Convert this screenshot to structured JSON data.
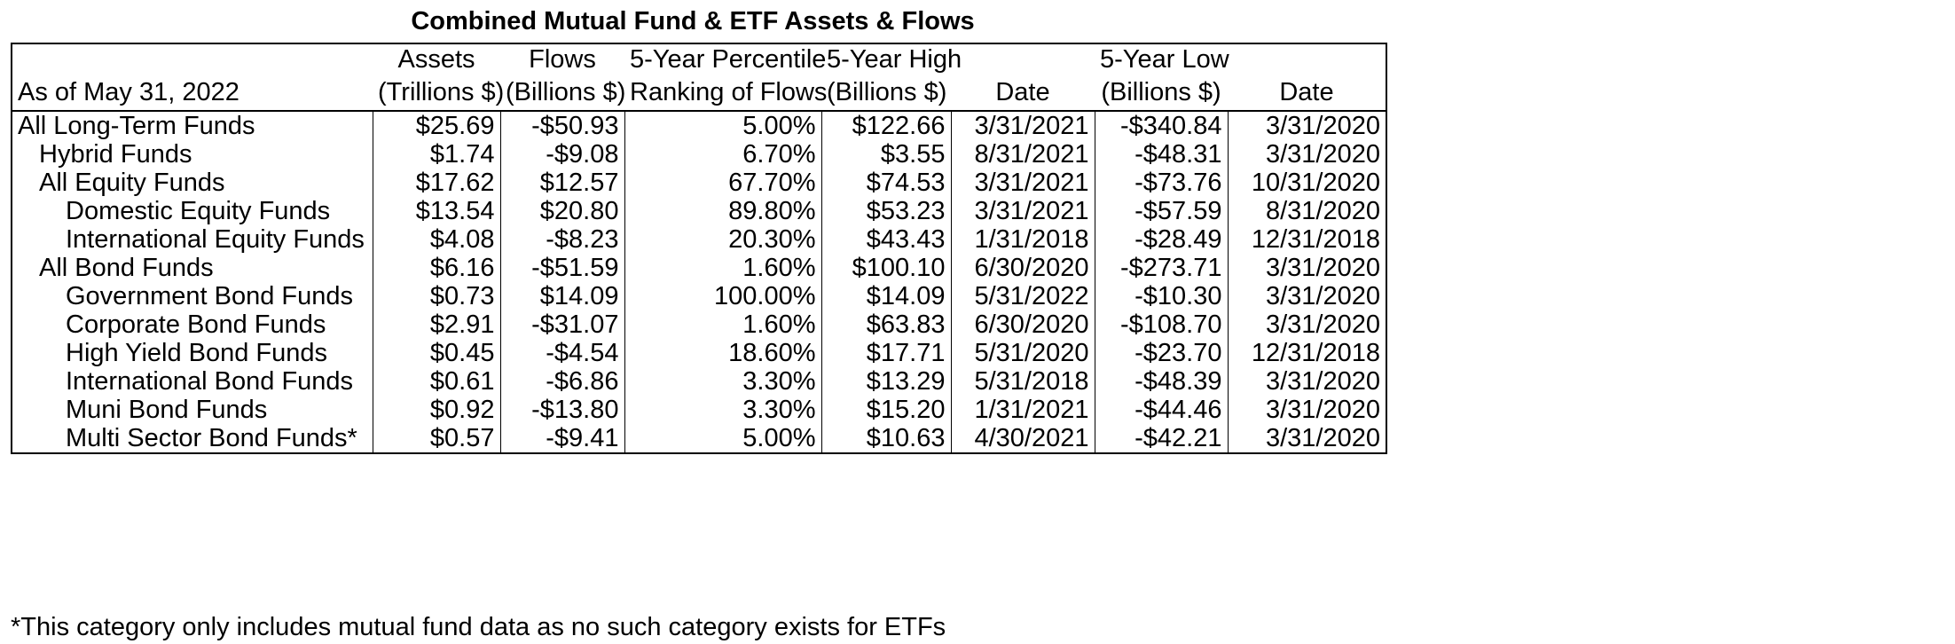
{
  "title": "Combined Mutual Fund & ETF Assets & Flows",
  "as_of": "As of May 31, 2022",
  "columns": {
    "assets": {
      "line1": "Assets",
      "line2": "(Trillions $)"
    },
    "flows": {
      "line1": "Flows",
      "line2": "(Billions $)"
    },
    "percentile": {
      "line1": "5-Year Percentile",
      "line2": "Ranking of Flows"
    },
    "high": {
      "line1": "5-Year High",
      "line2": "(Billions $)"
    },
    "high_date": {
      "line1": "",
      "line2": "Date"
    },
    "low": {
      "line1": "5-Year Low",
      "line2": "(Billions $)"
    },
    "low_date": {
      "line1": "",
      "line2": "Date"
    }
  },
  "rows": [
    {
      "name": "All Long-Term Funds",
      "indent": 0,
      "assets": "$25.69",
      "flows": "-$50.93",
      "percentile": "5.00%",
      "high": "$122.66",
      "high_date": "3/31/2021",
      "low": "-$340.84",
      "low_date": "3/31/2020"
    },
    {
      "name": "Hybrid Funds",
      "indent": 1,
      "assets": "$1.74",
      "flows": "-$9.08",
      "percentile": "6.70%",
      "high": "$3.55",
      "high_date": "8/31/2021",
      "low": "-$48.31",
      "low_date": "3/31/2020"
    },
    {
      "name": "All Equity Funds",
      "indent": 1,
      "assets": "$17.62",
      "flows": "$12.57",
      "percentile": "67.70%",
      "high": "$74.53",
      "high_date": "3/31/2021",
      "low": "-$73.76",
      "low_date": "10/31/2020"
    },
    {
      "name": "Domestic Equity Funds",
      "indent": 2,
      "assets": "$13.54",
      "flows": "$20.80",
      "percentile": "89.80%",
      "high": "$53.23",
      "high_date": "3/31/2021",
      "low": "-$57.59",
      "low_date": "8/31/2020"
    },
    {
      "name": "International Equity Funds",
      "indent": 2,
      "assets": "$4.08",
      "flows": "-$8.23",
      "percentile": "20.30%",
      "high": "$43.43",
      "high_date": "1/31/2018",
      "low": "-$28.49",
      "low_date": "12/31/2018"
    },
    {
      "name": "All Bond Funds",
      "indent": 1,
      "assets": "$6.16",
      "flows": "-$51.59",
      "percentile": "1.60%",
      "high": "$100.10",
      "high_date": "6/30/2020",
      "low": "-$273.71",
      "low_date": "3/31/2020"
    },
    {
      "name": "Government Bond Funds",
      "indent": 2,
      "assets": "$0.73",
      "flows": "$14.09",
      "percentile": "100.00%",
      "high": "$14.09",
      "high_date": "5/31/2022",
      "low": "-$10.30",
      "low_date": "3/31/2020"
    },
    {
      "name": "Corporate Bond Funds",
      "indent": 2,
      "assets": "$2.91",
      "flows": "-$31.07",
      "percentile": "1.60%",
      "high": "$63.83",
      "high_date": "6/30/2020",
      "low": "-$108.70",
      "low_date": "3/31/2020"
    },
    {
      "name": "High Yield Bond Funds",
      "indent": 2,
      "assets": "$0.45",
      "flows": "-$4.54",
      "percentile": "18.60%",
      "high": "$17.71",
      "high_date": "5/31/2020",
      "low": "-$23.70",
      "low_date": "12/31/2018"
    },
    {
      "name": "International Bond Funds",
      "indent": 2,
      "assets": "$0.61",
      "flows": "-$6.86",
      "percentile": "3.30%",
      "high": "$13.29",
      "high_date": "5/31/2018",
      "low": "-$48.39",
      "low_date": "3/31/2020"
    },
    {
      "name": "Muni Bond Funds",
      "indent": 2,
      "assets": "$0.92",
      "flows": "-$13.80",
      "percentile": "3.30%",
      "high": "$15.20",
      "high_date": "1/31/2021",
      "low": "-$44.46",
      "low_date": "3/31/2020"
    },
    {
      "name": "Multi Sector Bond Funds*",
      "indent": 2,
      "assets": "$0.57",
      "flows": "-$9.41",
      "percentile": "5.00%",
      "high": "$10.63",
      "high_date": "4/30/2021",
      "low": "-$42.21",
      "low_date": "3/31/2020"
    }
  ],
  "footnote": "*This category only includes mutual fund data as no such category exists for ETFs"
}
